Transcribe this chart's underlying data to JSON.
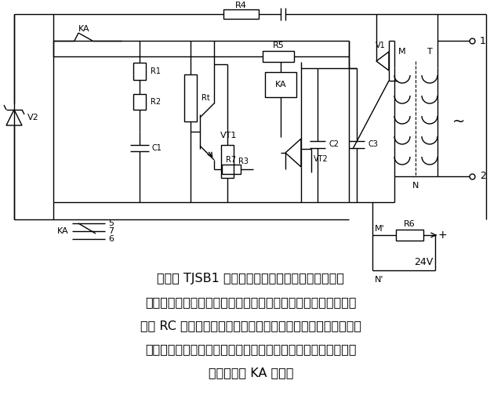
{
  "bg_color": "#ffffff",
  "line_color": "#000000",
  "text_color": "#000000",
  "fig_width": 6.39,
  "fig_height": 5.13,
  "description_line1": "所示为 TJSB1 型晶体管时间继电器延时型电路。在",
  "description_line2": "电路中，控制电压经过降压、整流、滤波和稳压后，供单结晶体",
  "description_line3": "管和 RC 元件组成的脉冲发生器。当单结晶体管导通时，电容放",
  "description_line4": "电，产生一个正脉冲电压加到晶闸管的控制极上，而后晶闸管导",
  "description_line5": "通，继电器 KA 动作。"
}
